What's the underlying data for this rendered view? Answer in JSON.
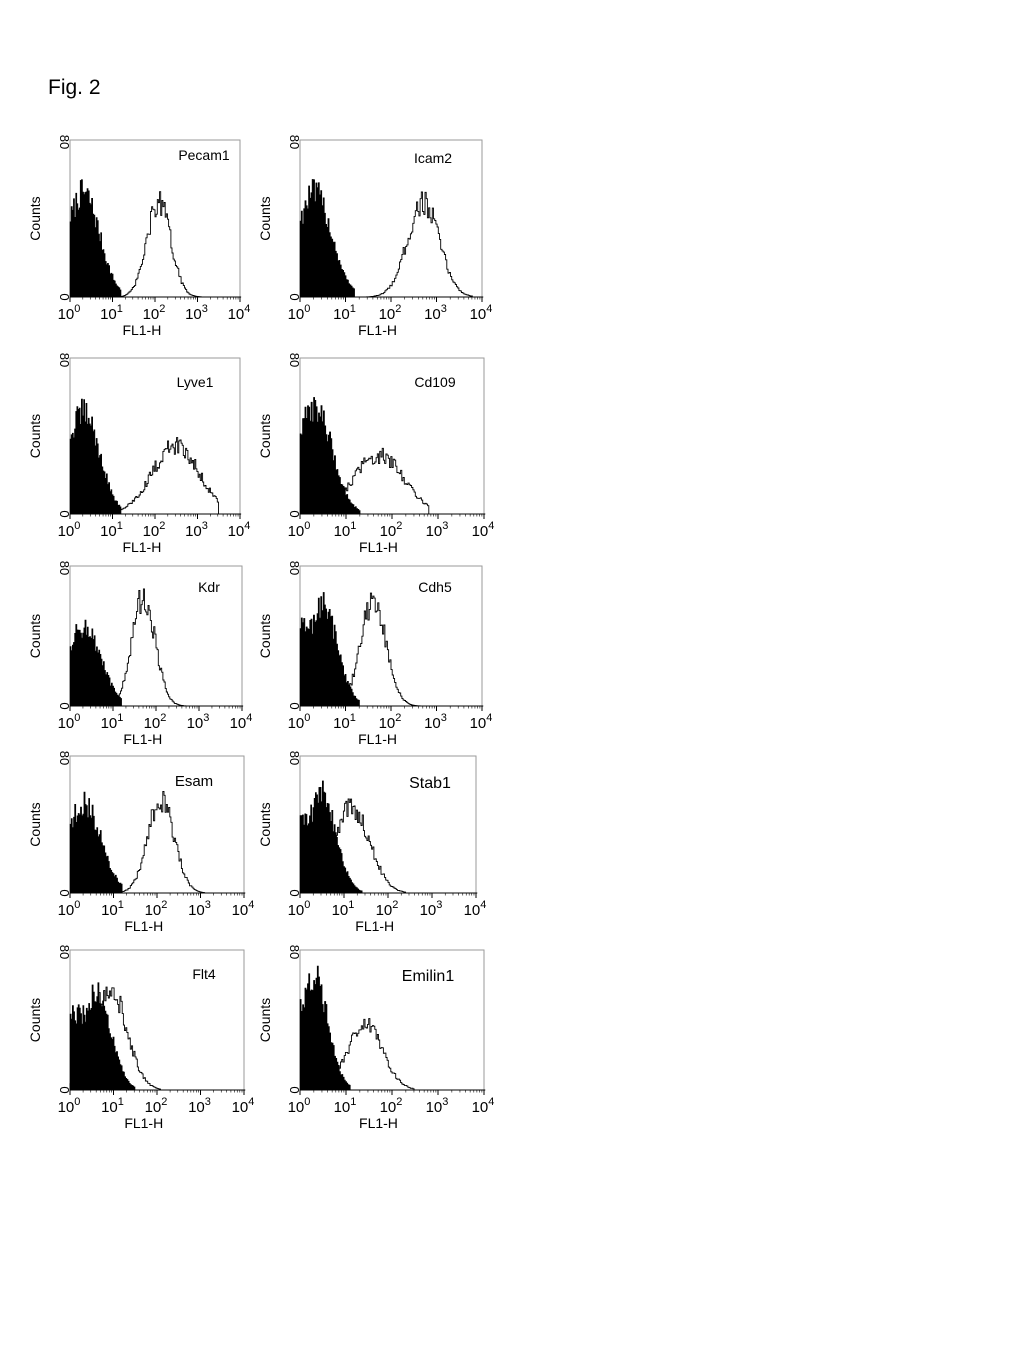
{
  "figure": {
    "title": "Fig. 2"
  },
  "chart_data": [
    {
      "type": "area",
      "title": "Pecam1",
      "xlabel": "FL1-H",
      "ylabel": "Counts",
      "xscale": "log",
      "xlim": [
        1,
        10000
      ],
      "ylim": [
        0,
        80
      ],
      "x_ticks": [
        "10^0",
        "10^1",
        "10^2",
        "10^3",
        "10^4"
      ],
      "y_ticks": [
        "0",
        "80"
      ],
      "series": [
        {
          "fill": "solid",
          "peak_x": 2,
          "peak_y": 53,
          "width": 0.38,
          "max_x": 15
        },
        {
          "fill": "outline",
          "peak_x": 120,
          "peak_y": 48,
          "width": 0.28,
          "max_x": 1200
        }
      ]
    },
    {
      "type": "area",
      "title": "Icam2",
      "xlabel": "FL1-H",
      "ylabel": "Counts",
      "xscale": "log",
      "xlim": [
        1,
        10000
      ],
      "ylim": [
        0,
        80
      ],
      "x_ticks": [
        "10^0",
        "10^1",
        "10^2",
        "10^3",
        "10^4"
      ],
      "y_ticks": [
        "0",
        "80"
      ],
      "series": [
        {
          "fill": "solid",
          "peak_x": 2,
          "peak_y": 53,
          "width": 0.38,
          "max_x": 15
        },
        {
          "fill": "outline",
          "peak_x": 500,
          "peak_y": 48,
          "width": 0.35,
          "max_x": 6000
        }
      ]
    },
    {
      "type": "area",
      "title": "Lyve1",
      "xlabel": "FL1-H",
      "ylabel": "Counts",
      "xscale": "log",
      "xlim": [
        1,
        10000
      ],
      "ylim": [
        0,
        80
      ],
      "x_ticks": [
        "10^0",
        "10^1",
        "10^2",
        "10^3",
        "10^4"
      ],
      "y_ticks": [
        "0",
        "80"
      ],
      "series": [
        {
          "fill": "solid",
          "peak_x": 2,
          "peak_y": 52,
          "width": 0.38,
          "max_x": 15
        },
        {
          "fill": "outline",
          "peak_x": 300,
          "peak_y": 35,
          "width": 0.55,
          "max_x": 3000
        }
      ]
    },
    {
      "type": "area",
      "title": "Cd109",
      "xlabel": "FL1-H",
      "ylabel": "Counts",
      "xscale": "log",
      "xlim": [
        1,
        10000
      ],
      "ylim": [
        0,
        80
      ],
      "x_ticks": [
        "10^0",
        "10^1",
        "10^2",
        "10^3",
        "10^4"
      ],
      "y_ticks": [
        "0",
        "80"
      ],
      "series": [
        {
          "fill": "solid",
          "peak_x": 2,
          "peak_y": 55,
          "width": 0.38,
          "max_x": 20
        },
        {
          "fill": "outline",
          "peak_x": 50,
          "peak_y": 30,
          "width": 0.55,
          "max_x": 600
        }
      ]
    },
    {
      "type": "area",
      "title": "Kdr",
      "xlabel": "FL1-H",
      "ylabel": "Counts",
      "xscale": "log",
      "xlim": [
        1,
        10000
      ],
      "ylim": [
        0,
        80
      ],
      "x_ticks": [
        "10^0",
        "10^1",
        "10^2",
        "10^3",
        "10^4"
      ],
      "y_ticks": [
        "0",
        "80"
      ],
      "series": [
        {
          "fill": "solid",
          "peak_x": 2,
          "peak_y": 45,
          "width": 0.4,
          "max_x": 15
        },
        {
          "fill": "outline",
          "peak_x": 50,
          "peak_y": 62,
          "width": 0.27,
          "max_x": 600
        }
      ]
    },
    {
      "type": "area",
      "title": "Cdh5",
      "xlabel": "FL1-H",
      "ylabel": "Counts",
      "xscale": "log",
      "xlim": [
        1,
        10000
      ],
      "ylim": [
        0,
        80
      ],
      "x_ticks": [
        "10^0",
        "10^1",
        "10^2",
        "10^3",
        "10^4"
      ],
      "y_ticks": [
        "0",
        "80"
      ],
      "series": [
        {
          "fill": "solid",
          "peak_x": 3,
          "peak_y": 58,
          "width": 0.33,
          "max_x": 20
        },
        {
          "fill": "outline",
          "peak_x": 40,
          "peak_y": 60,
          "width": 0.28,
          "max_x": 500
        }
      ]
    },
    {
      "type": "area",
      "title": "Esam",
      "xlabel": "FL1-H",
      "ylabel": "Counts",
      "xscale": "log",
      "xlim": [
        1,
        10000
      ],
      "ylim": [
        0,
        80
      ],
      "x_ticks": [
        "10^0",
        "10^1",
        "10^2",
        "10^3",
        "10^4"
      ],
      "y_ticks": [
        "0",
        "80"
      ],
      "series": [
        {
          "fill": "solid",
          "peak_x": 2,
          "peak_y": 52,
          "width": 0.4,
          "max_x": 15
        },
        {
          "fill": "outline",
          "peak_x": 120,
          "peak_y": 55,
          "width": 0.3,
          "max_x": 1200
        }
      ]
    },
    {
      "type": "area",
      "title": "Stab1",
      "xlabel": "FL1-H",
      "ylabel": "Counts",
      "xscale": "log",
      "xlim": [
        1,
        10000
      ],
      "ylim": [
        0,
        80
      ],
      "x_ticks": [
        "10^0",
        "10^1",
        "10^2",
        "10^3",
        "10^4"
      ],
      "y_ticks": [
        "0",
        "80"
      ],
      "series": [
        {
          "fill": "solid",
          "peak_x": 3,
          "peak_y": 58,
          "width": 0.33,
          "max_x": 25
        },
        {
          "fill": "outline",
          "peak_x": 15,
          "peak_y": 50,
          "width": 0.4,
          "max_x": 250
        }
      ]
    },
    {
      "type": "area",
      "title": "Flt4",
      "xlabel": "FL1-H",
      "ylabel": "Counts",
      "xscale": "log",
      "xlim": [
        1,
        10000
      ],
      "ylim": [
        0,
        80
      ],
      "x_ticks": [
        "10^0",
        "10^1",
        "10^2",
        "10^3",
        "10^4"
      ],
      "y_ticks": [
        "0",
        "80"
      ],
      "series": [
        {
          "fill": "solid",
          "peak_x": 4,
          "peak_y": 55,
          "width": 0.33,
          "max_x": 30
        },
        {
          "fill": "outline",
          "peak_x": 8,
          "peak_y": 60,
          "width": 0.38,
          "max_x": 120
        }
      ]
    },
    {
      "type": "area",
      "title": "Emilin1",
      "xlabel": "FL1-H",
      "ylabel": "Counts",
      "xscale": "log",
      "xlim": [
        1,
        10000
      ],
      "ylim": [
        0,
        80
      ],
      "x_ticks": [
        "10^0",
        "10^1",
        "10^2",
        "10^3",
        "10^4"
      ],
      "y_ticks": [
        "0",
        "80"
      ],
      "series": [
        {
          "fill": "solid",
          "peak_x": 2,
          "peak_y": 65,
          "width": 0.3,
          "max_x": 12
        },
        {
          "fill": "outline",
          "peak_x": 25,
          "peak_y": 37,
          "width": 0.38,
          "max_x": 300
        }
      ]
    }
  ]
}
